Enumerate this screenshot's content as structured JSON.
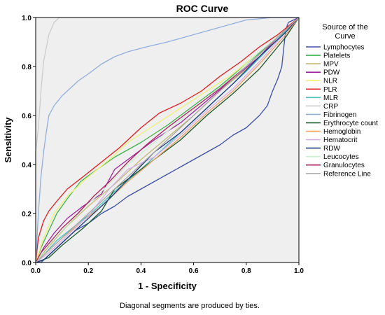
{
  "chart_data": {
    "type": "line",
    "title": "ROC Curve",
    "xlabel": "1 - Specificity",
    "ylabel": "Sensitivity",
    "xlim": [
      0,
      1
    ],
    "ylim": [
      0,
      1
    ],
    "xticks": [
      "0.0",
      "0.2",
      "0.4",
      "0.6",
      "0.8",
      "1.0"
    ],
    "yticks": [
      "0.0",
      "0.2",
      "0.4",
      "0.6",
      "0.8",
      "1.0"
    ],
    "grid": false,
    "legend_title": "Source of the Curve",
    "legend_position": "right",
    "footnote": "Diagonal segments are produced by ties.",
    "plot_background": "#efefef",
    "series": [
      {
        "name": "Lymphocytes",
        "color": "#3b50a8",
        "points": [
          [
            0,
            0
          ],
          [
            0.02,
            0
          ],
          [
            0.05,
            0.03
          ],
          [
            0.1,
            0.08
          ],
          [
            0.15,
            0.13
          ],
          [
            0.2,
            0.16
          ],
          [
            0.25,
            0.2
          ],
          [
            0.3,
            0.23
          ],
          [
            0.35,
            0.27
          ],
          [
            0.4,
            0.3
          ],
          [
            0.45,
            0.33
          ],
          [
            0.5,
            0.36
          ],
          [
            0.55,
            0.39
          ],
          [
            0.6,
            0.42
          ],
          [
            0.65,
            0.45
          ],
          [
            0.7,
            0.48
          ],
          [
            0.75,
            0.52
          ],
          [
            0.8,
            0.55
          ],
          [
            0.85,
            0.6
          ],
          [
            0.88,
            0.64
          ],
          [
            0.9,
            0.7
          ],
          [
            0.92,
            0.75
          ],
          [
            0.935,
            0.8
          ],
          [
            0.94,
            0.85
          ],
          [
            0.945,
            0.9
          ],
          [
            0.95,
            0.95
          ],
          [
            0.96,
            0.98
          ],
          [
            1,
            1
          ]
        ]
      },
      {
        "name": "Platelets",
        "color": "#3cb44b",
        "points": [
          [
            0,
            0
          ],
          [
            0.02,
            0.06
          ],
          [
            0.05,
            0.13
          ],
          [
            0.08,
            0.2
          ],
          [
            0.12,
            0.26
          ],
          [
            0.17,
            0.33
          ],
          [
            0.22,
            0.37
          ],
          [
            0.3,
            0.43
          ],
          [
            0.4,
            0.49
          ],
          [
            0.5,
            0.56
          ],
          [
            0.6,
            0.64
          ],
          [
            0.7,
            0.72
          ],
          [
            0.8,
            0.81
          ],
          [
            0.9,
            0.9
          ],
          [
            0.95,
            0.95
          ],
          [
            1,
            1
          ]
        ]
      },
      {
        "name": "MPV",
        "color": "#c0b870",
        "points": [
          [
            0,
            0
          ],
          [
            0.03,
            0.04
          ],
          [
            0.07,
            0.09
          ],
          [
            0.12,
            0.15
          ],
          [
            0.2,
            0.23
          ],
          [
            0.3,
            0.32
          ],
          [
            0.4,
            0.42
          ],
          [
            0.5,
            0.51
          ],
          [
            0.6,
            0.6
          ],
          [
            0.7,
            0.7
          ],
          [
            0.8,
            0.79
          ],
          [
            0.9,
            0.89
          ],
          [
            1,
            1
          ]
        ]
      },
      {
        "name": "PDW",
        "color": "#a020a0",
        "points": [
          [
            0,
            0
          ],
          [
            0.03,
            0.06
          ],
          [
            0.07,
            0.12
          ],
          [
            0.12,
            0.18
          ],
          [
            0.18,
            0.23
          ],
          [
            0.25,
            0.28
          ],
          [
            0.3,
            0.38
          ],
          [
            0.35,
            0.42
          ],
          [
            0.45,
            0.5
          ],
          [
            0.55,
            0.57
          ],
          [
            0.65,
            0.66
          ],
          [
            0.75,
            0.75
          ],
          [
            0.85,
            0.84
          ],
          [
            0.92,
            0.92
          ],
          [
            1,
            1
          ]
        ]
      },
      {
        "name": "NLR",
        "color": "#f0f070",
        "points": [
          [
            0,
            0
          ],
          [
            0.03,
            0.1
          ],
          [
            0.07,
            0.2
          ],
          [
            0.12,
            0.27
          ],
          [
            0.2,
            0.35
          ],
          [
            0.28,
            0.42
          ],
          [
            0.35,
            0.49
          ],
          [
            0.45,
            0.56
          ],
          [
            0.55,
            0.63
          ],
          [
            0.65,
            0.7
          ],
          [
            0.75,
            0.77
          ],
          [
            0.85,
            0.86
          ],
          [
            0.95,
            0.95
          ],
          [
            1,
            1
          ]
        ]
      },
      {
        "name": "PLR",
        "color": "#e41a1c",
        "points": [
          [
            0,
            0
          ],
          [
            0.01,
            0.1
          ],
          [
            0.03,
            0.17
          ],
          [
            0.05,
            0.21
          ],
          [
            0.08,
            0.25
          ],
          [
            0.12,
            0.3
          ],
          [
            0.18,
            0.35
          ],
          [
            0.25,
            0.41
          ],
          [
            0.32,
            0.47
          ],
          [
            0.4,
            0.55
          ],
          [
            0.47,
            0.61
          ],
          [
            0.55,
            0.65
          ],
          [
            0.63,
            0.7
          ],
          [
            0.7,
            0.76
          ],
          [
            0.78,
            0.82
          ],
          [
            0.85,
            0.88
          ],
          [
            0.92,
            0.93
          ],
          [
            1,
            1
          ]
        ]
      },
      {
        "name": "MLR",
        "color": "#48c0c0",
        "points": [
          [
            0,
            0
          ],
          [
            0.03,
            0.03
          ],
          [
            0.08,
            0.09
          ],
          [
            0.15,
            0.15
          ],
          [
            0.22,
            0.21
          ],
          [
            0.3,
            0.29
          ],
          [
            0.4,
            0.38
          ],
          [
            0.5,
            0.48
          ],
          [
            0.6,
            0.58
          ],
          [
            0.7,
            0.68
          ],
          [
            0.8,
            0.78
          ],
          [
            0.9,
            0.89
          ],
          [
            1,
            1
          ]
        ]
      },
      {
        "name": "CRP",
        "color": "#cccccc",
        "points": [
          [
            0,
            0
          ],
          [
            0,
            0.45
          ],
          [
            0.01,
            0.55
          ],
          [
            0.02,
            0.7
          ],
          [
            0.03,
            0.82
          ],
          [
            0.05,
            0.93
          ],
          [
            0.07,
            0.98
          ],
          [
            0.09,
            1
          ],
          [
            1,
            1
          ]
        ]
      },
      {
        "name": "Fibrinogen",
        "color": "#8fb0de",
        "points": [
          [
            0,
            0
          ],
          [
            0.01,
            0.2
          ],
          [
            0.02,
            0.35
          ],
          [
            0.03,
            0.45
          ],
          [
            0.04,
            0.53
          ],
          [
            0.05,
            0.6
          ],
          [
            0.07,
            0.64
          ],
          [
            0.1,
            0.68
          ],
          [
            0.13,
            0.71
          ],
          [
            0.16,
            0.74
          ],
          [
            0.2,
            0.77
          ],
          [
            0.25,
            0.81
          ],
          [
            0.3,
            0.84
          ],
          [
            0.35,
            0.86
          ],
          [
            0.42,
            0.88
          ],
          [
            0.5,
            0.9
          ],
          [
            0.6,
            0.93
          ],
          [
            0.7,
            0.96
          ],
          [
            0.8,
            0.99
          ],
          [
            0.9,
            1
          ],
          [
            1,
            1
          ]
        ]
      },
      {
        "name": "Erythrocyte count",
        "color": "#1a5a2a",
        "points": [
          [
            0,
            0
          ],
          [
            0.05,
            0.02
          ],
          [
            0.1,
            0.07
          ],
          [
            0.18,
            0.14
          ],
          [
            0.25,
            0.21
          ],
          [
            0.3,
            0.3
          ],
          [
            0.35,
            0.34
          ],
          [
            0.45,
            0.42
          ],
          [
            0.55,
            0.5
          ],
          [
            0.65,
            0.6
          ],
          [
            0.75,
            0.69
          ],
          [
            0.85,
            0.79
          ],
          [
            0.95,
            0.92
          ],
          [
            1,
            1
          ]
        ]
      },
      {
        "name": "Hemoglobin",
        "color": "#f0a060",
        "points": [
          [
            0,
            0
          ],
          [
            0.05,
            0.05
          ],
          [
            0.1,
            0.1
          ],
          [
            0.18,
            0.17
          ],
          [
            0.25,
            0.23
          ],
          [
            0.35,
            0.33
          ],
          [
            0.45,
            0.42
          ],
          [
            0.55,
            0.51
          ],
          [
            0.65,
            0.61
          ],
          [
            0.75,
            0.7
          ],
          [
            0.85,
            0.81
          ],
          [
            0.95,
            0.93
          ],
          [
            1,
            1
          ]
        ]
      },
      {
        "name": "Hematocrit",
        "color": "#d8b0e8",
        "points": [
          [
            0,
            0
          ],
          [
            0.05,
            0.04
          ],
          [
            0.12,
            0.11
          ],
          [
            0.2,
            0.19
          ],
          [
            0.28,
            0.3
          ],
          [
            0.35,
            0.38
          ],
          [
            0.45,
            0.43
          ],
          [
            0.55,
            0.52
          ],
          [
            0.65,
            0.62
          ],
          [
            0.75,
            0.71
          ],
          [
            0.85,
            0.82
          ],
          [
            0.95,
            0.94
          ],
          [
            1,
            1
          ]
        ]
      },
      {
        "name": "RDW",
        "color": "#1f3f80",
        "points": [
          [
            0,
            0
          ],
          [
            0.03,
            0.01
          ],
          [
            0.08,
            0.06
          ],
          [
            0.14,
            0.12
          ],
          [
            0.2,
            0.18
          ],
          [
            0.28,
            0.26
          ],
          [
            0.36,
            0.35
          ],
          [
            0.45,
            0.45
          ],
          [
            0.55,
            0.53
          ],
          [
            0.65,
            0.63
          ],
          [
            0.75,
            0.73
          ],
          [
            0.85,
            0.84
          ],
          [
            0.95,
            0.94
          ],
          [
            1,
            1
          ]
        ]
      },
      {
        "name": "Leucocytes",
        "color": "#c8f0d0",
        "points": [
          [
            0,
            0
          ],
          [
            0.04,
            0.06
          ],
          [
            0.1,
            0.13
          ],
          [
            0.18,
            0.22
          ],
          [
            0.26,
            0.3
          ],
          [
            0.35,
            0.4
          ],
          [
            0.45,
            0.49
          ],
          [
            0.55,
            0.58
          ],
          [
            0.65,
            0.67
          ],
          [
            0.75,
            0.76
          ],
          [
            0.85,
            0.86
          ],
          [
            0.95,
            0.95
          ],
          [
            1,
            1
          ]
        ]
      },
      {
        "name": "Granulocytes",
        "color": "#b02060",
        "points": [
          [
            0,
            0
          ],
          [
            0.02,
            0.04
          ],
          [
            0.06,
            0.09
          ],
          [
            0.1,
            0.14
          ],
          [
            0.16,
            0.2
          ],
          [
            0.22,
            0.27
          ],
          [
            0.28,
            0.33
          ],
          [
            0.35,
            0.41
          ],
          [
            0.42,
            0.48
          ],
          [
            0.5,
            0.55
          ],
          [
            0.6,
            0.63
          ],
          [
            0.7,
            0.71
          ],
          [
            0.8,
            0.8
          ],
          [
            0.9,
            0.9
          ],
          [
            1,
            1
          ]
        ]
      },
      {
        "name": "Reference Line",
        "color": "#aaaaaa",
        "points": [
          [
            0,
            0
          ],
          [
            1,
            1
          ]
        ]
      }
    ]
  }
}
